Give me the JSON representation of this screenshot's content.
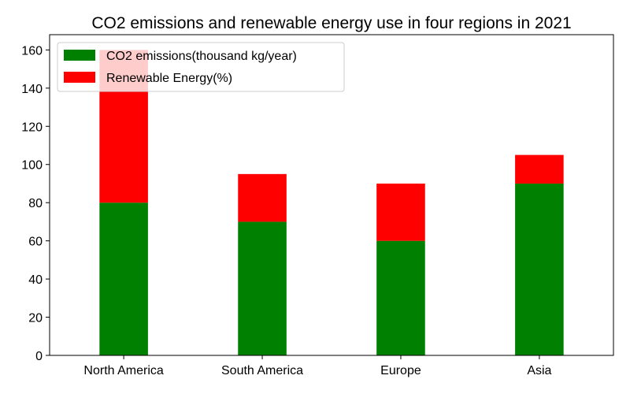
{
  "chart_data": {
    "type": "bar",
    "stacked": true,
    "title": "CO2 emissions and renewable energy use in four regions in 2021",
    "xlabel": "",
    "ylabel": "",
    "categories": [
      "North America",
      "South America",
      "Europe",
      "Asia"
    ],
    "series": [
      {
        "name": "CO2 emissions(thousand kg/year)",
        "values": [
          80,
          70,
          60,
          90
        ],
        "color": "#008000"
      },
      {
        "name": "Renewable Energy(%)",
        "values": [
          80,
          25,
          30,
          15
        ],
        "color": "#ff0000"
      }
    ],
    "ylim": [
      0,
      168
    ],
    "yticks": [
      0,
      20,
      40,
      60,
      80,
      100,
      120,
      140,
      160
    ],
    "legend_position": "top-left",
    "grid": false
  }
}
